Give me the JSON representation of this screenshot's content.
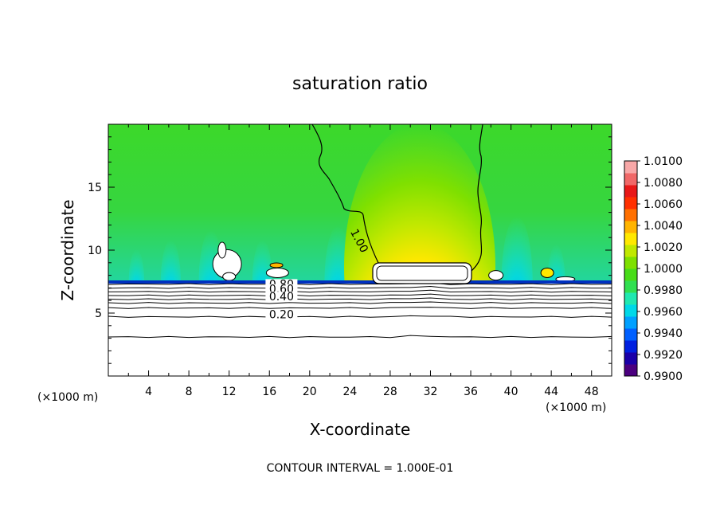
{
  "chart_data": {
    "type": "heatmap",
    "title": "saturation ratio",
    "xlabel": "X-coordinate",
    "ylabel": "Z-coordinate",
    "x_unit_left": "(×1000 m)",
    "x_unit_right": "(×1000 m)",
    "footer": "CONTOUR INTERVAL = 1.000E-01",
    "xlim": [
      0,
      50
    ],
    "ylim": [
      0,
      20
    ],
    "x_ticks": [
      4,
      8,
      12,
      16,
      20,
      24,
      28,
      32,
      36,
      40,
      44,
      48
    ],
    "y_ticks": [
      5,
      10,
      15
    ],
    "colorbar": {
      "min": 0.99,
      "max": 1.01,
      "labels": [
        "1.0100",
        "1.0080",
        "1.0060",
        "1.0040",
        "1.0020",
        "1.0000",
        "0.9980",
        "0.9960",
        "0.9940",
        "0.9920",
        "0.9900"
      ],
      "colors": [
        "#4b007f",
        "#1a00a8",
        "#0020e0",
        "#0060ff",
        "#00a0ff",
        "#00d8e8",
        "#20e8b0",
        "#30e050",
        "#48dc18",
        "#7ee000",
        "#c0e800",
        "#ffe800",
        "#ffb400",
        "#ff7000",
        "#ff3000",
        "#e81818",
        "#f06868",
        "#f8a8a8"
      ]
    },
    "contour_labels": [
      {
        "text": "1.00",
        "x": 24.6,
        "z": 10.6
      },
      {
        "text": "0.80",
        "x": 17.2,
        "z": 7.0
      },
      {
        "text": "0.60",
        "x": 17.2,
        "z": 6.6
      },
      {
        "text": "0.40",
        "x": 17.2,
        "z": 6.0
      },
      {
        "text": "0.20",
        "x": 17.2,
        "z": 4.6
      }
    ],
    "boundary_layer_levels_z": [
      7.3,
      7.0,
      6.7,
      6.4,
      6.1,
      5.8,
      5.4,
      4.7,
      3.1
    ],
    "moist_layer_top_z": 7.4
  }
}
